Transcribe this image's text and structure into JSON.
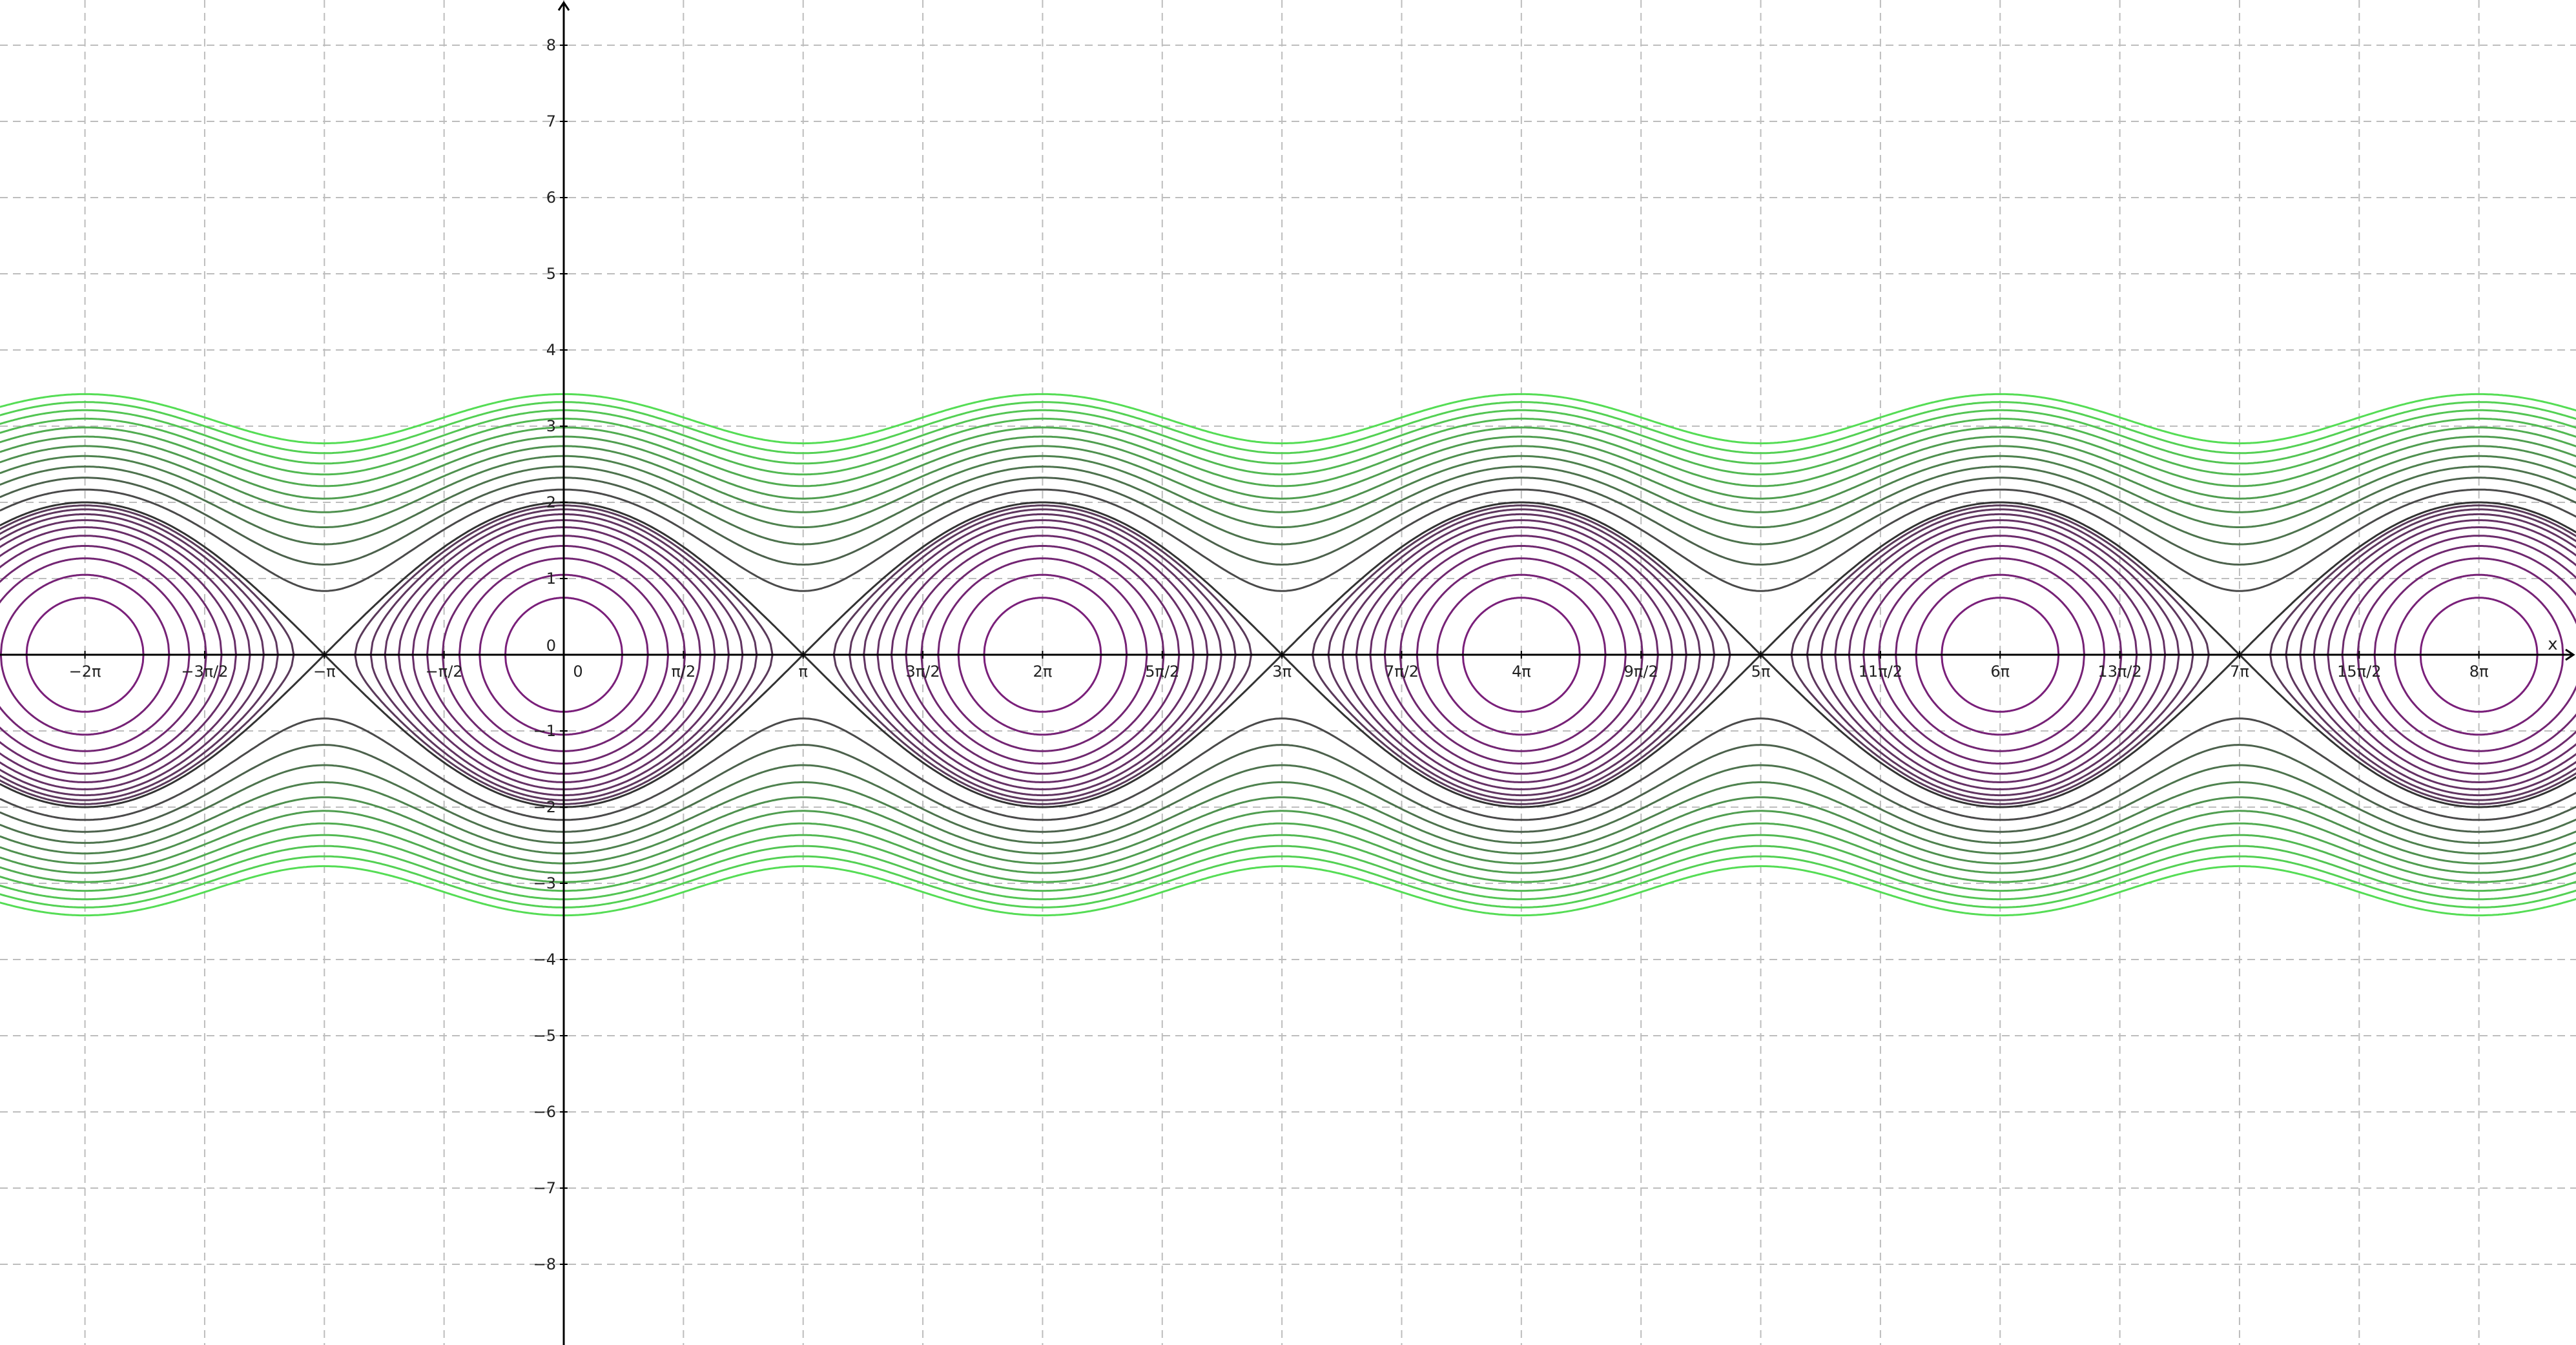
{
  "chart_data": {
    "type": "line",
    "description_of_curves": "level sets of E(x,y)=y^2/2 - cos(x) (pendulum phase portrait)",
    "x_axis": {
      "name": "x",
      "range": [
        -7.4,
        26.9
      ],
      "tick_values": [
        -6.2832,
        -4.7124,
        -3.1416,
        -1.5708,
        0,
        1.5708,
        3.1416,
        4.7124,
        6.2832,
        7.854,
        9.4248,
        10.9956,
        12.5664,
        14.1372,
        15.708,
        17.2788,
        18.8496,
        20.4204,
        21.9911,
        23.5619,
        25.1327
      ],
      "tick_labels": [
        "−2π",
        "−3π/2",
        "−π",
        "−π/2",
        "0",
        "π/2",
        "π",
        "3π/2",
        "2π",
        "5π/2",
        "3π",
        "7π/2",
        "4π",
        "9π/2",
        "5π",
        "11π/2",
        "6π",
        "13π/2",
        "7π",
        "15π/2",
        "8π"
      ]
    },
    "y_axis": {
      "name": "",
      "range": [
        -8.85,
        8.85
      ],
      "tick_values": [
        -8,
        -7,
        -6,
        -5,
        -4,
        -3,
        -2,
        -1,
        0,
        1,
        2,
        3,
        4,
        5,
        6,
        7,
        8
      ],
      "tick_labels": [
        "−8",
        "−7",
        "−6",
        "−5",
        "−4",
        "−3",
        "−2",
        "−1",
        "0",
        "1",
        "2",
        "3",
        "4",
        "5",
        "6",
        "7",
        "8"
      ]
    },
    "grid": true,
    "grid_style": "dashed",
    "closed_orbit_levels": [
      -0.72,
      -0.45,
      -0.2,
      0.02,
      0.22,
      0.4,
      0.56,
      0.7,
      0.82,
      0.92
    ],
    "separatrix_level": 1.0,
    "open_orbit_levels": [
      1.35,
      1.7,
      2.05,
      2.4,
      2.75,
      3.1,
      3.45,
      3.8,
      4.15,
      4.5,
      4.85
    ],
    "colors": {
      "closed_orbit": "#7a1f7a",
      "separatrix": "#333333",
      "open_orbit_near": "#4a4a4a",
      "open_orbit_far": "#55dd55",
      "grid": "#bdbdbd",
      "axes": "#000000"
    }
  }
}
